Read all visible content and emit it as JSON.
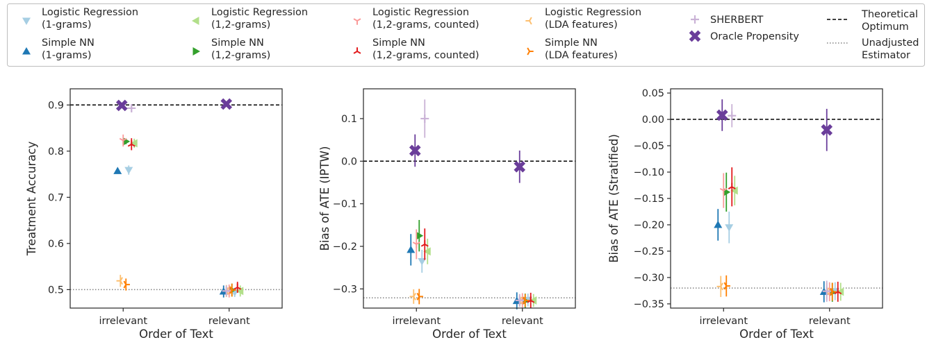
{
  "legend": {
    "entries": [
      {
        "label": "Logistic Regression\n(1-grams)",
        "color": "#a6cee3",
        "marker": "tri-down"
      },
      {
        "label": "Simple NN\n(1-grams)",
        "color": "#1f78b4",
        "marker": "tri-up"
      },
      {
        "label": "Logistic Regression\n(1,2-grams)",
        "color": "#b2df8a",
        "marker": "tri-left"
      },
      {
        "label": "Simple NN\n(1,2-grams)",
        "color": "#33a02c",
        "marker": "tri-right"
      },
      {
        "label": "Logistic Regression\n(1,2-grams, counted)",
        "color": "#fb9a99",
        "marker": "tri1-down"
      },
      {
        "label": "Simple NN\n(1,2-grams, counted)",
        "color": "#e31a1c",
        "marker": "tri1-up"
      },
      {
        "label": "Logistic Regression\n(LDA features)",
        "color": "#fdbf6f",
        "marker": "tri1-left"
      },
      {
        "label": "Simple NN\n(LDA features)",
        "color": "#ff7f00",
        "marker": "tri1-right"
      },
      {
        "label": "SHERBERT",
        "color": "#cab2d6",
        "marker": "plus"
      },
      {
        "label": "Oracle Propensity",
        "color": "#6a3d9a",
        "marker": "x-filled"
      },
      {
        "label": "Theoretical\nOptimum",
        "color": "#000000",
        "marker": "dashed-line"
      },
      {
        "label": "Unadjusted\nEstimator",
        "color": "#808080",
        "marker": "dotted-line"
      }
    ]
  },
  "chart_data": [
    {
      "type": "scatter",
      "xlabel": "Order of Text",
      "ylabel": "Treatment Accuracy",
      "categories": [
        "irrelevant",
        "relevant"
      ],
      "ylim": [
        0.46,
        0.935
      ],
      "yticks": [
        0.5,
        0.6,
        0.7,
        0.8,
        0.9
      ],
      "ytick_labels": [
        "0.5",
        "0.6",
        "0.7",
        "0.8",
        "0.9"
      ],
      "reference_lines": {
        "theoretical_optimum": 0.9,
        "unadjusted_estimator": 0.5
      },
      "series": [
        {
          "name": "Logistic Regression (1-grams)",
          "points": [
            {
              "x": "irrelevant",
              "y": 0.759,
              "err": 0.01
            },
            {
              "x": "relevant",
              "y": 0.494,
              "err": 0.01
            }
          ]
        },
        {
          "name": "Simple NN (1-grams)",
          "points": [
            {
              "x": "irrelevant",
              "y": 0.757,
              "err": 0.006
            },
            {
              "x": "relevant",
              "y": 0.496,
              "err": 0.013
            }
          ]
        },
        {
          "name": "Logistic Regression (1,2-grams)",
          "points": [
            {
              "x": "irrelevant",
              "y": 0.817,
              "err": 0.01
            },
            {
              "x": "relevant",
              "y": 0.497,
              "err": 0.012
            }
          ]
        },
        {
          "name": "Simple NN (1,2-grams)",
          "points": [
            {
              "x": "irrelevant",
              "y": 0.821,
              "err": 0.006
            },
            {
              "x": "relevant",
              "y": 0.499,
              "err": 0.014
            }
          ]
        },
        {
          "name": "Logistic Regression (1,2-grams, counted)",
          "points": [
            {
              "x": "irrelevant",
              "y": 0.823,
              "err": 0.013
            },
            {
              "x": "relevant",
              "y": 0.497,
              "err": 0.014
            }
          ]
        },
        {
          "name": "Simple NN (1,2-grams, counted)",
          "points": [
            {
              "x": "irrelevant",
              "y": 0.815,
              "err": 0.013
            },
            {
              "x": "relevant",
              "y": 0.505,
              "err": 0.012
            }
          ]
        },
        {
          "name": "Logistic Regression (LDA features)",
          "points": [
            {
              "x": "irrelevant",
              "y": 0.519,
              "err": 0.013
            },
            {
              "x": "relevant",
              "y": 0.497,
              "err": 0.013
            }
          ]
        },
        {
          "name": "Simple NN (LDA features)",
          "points": [
            {
              "x": "irrelevant",
              "y": 0.511,
              "err": 0.013
            },
            {
              "x": "relevant",
              "y": 0.499,
              "err": 0.014
            }
          ]
        },
        {
          "name": "SHERBERT",
          "points": [
            {
              "x": "irrelevant",
              "y": 0.893,
              "err": 0.007
            },
            {
              "x": "relevant",
              "y": 0.497,
              "err": 0.012
            }
          ]
        },
        {
          "name": "Oracle Propensity",
          "points": [
            {
              "x": "irrelevant",
              "y": 0.899,
              "err": 0.003
            },
            {
              "x": "relevant",
              "y": 0.902,
              "err": 0.004
            }
          ]
        }
      ]
    },
    {
      "type": "scatter",
      "xlabel": "Order of Text",
      "ylabel": "Bias of ATE (IPTW)",
      "categories": [
        "irrelevant",
        "relevant"
      ],
      "ylim": [
        -0.345,
        0.17
      ],
      "yticks": [
        -0.3,
        -0.2,
        -0.1,
        0.0,
        0.1
      ],
      "ytick_labels": [
        "−0.3",
        "−0.2",
        "−0.1",
        "0.0",
        "0.1"
      ],
      "reference_lines": {
        "theoretical_optimum": 0.0,
        "unadjusted_estimator": -0.321
      },
      "series": [
        {
          "name": "Logistic Regression (1-grams)",
          "points": [
            {
              "x": "irrelevant",
              "y": -0.235,
              "err": 0.027
            },
            {
              "x": "relevant",
              "y": -0.326,
              "err": 0.015
            }
          ]
        },
        {
          "name": "Simple NN (1-grams)",
          "points": [
            {
              "x": "irrelevant",
              "y": -0.208,
              "err": 0.037
            },
            {
              "x": "relevant",
              "y": -0.328,
              "err": 0.02
            }
          ]
        },
        {
          "name": "Logistic Regression (1,2-grams)",
          "points": [
            {
              "x": "irrelevant",
              "y": -0.212,
              "err": 0.03
            },
            {
              "x": "relevant",
              "y": -0.327,
              "err": 0.015
            }
          ]
        },
        {
          "name": "Simple NN (1,2-grams)",
          "points": [
            {
              "x": "irrelevant",
              "y": -0.175,
              "err": 0.037
            },
            {
              "x": "relevant",
              "y": -0.328,
              "err": 0.017
            }
          ]
        },
        {
          "name": "Logistic Regression (1,2-grams, counted)",
          "points": [
            {
              "x": "irrelevant",
              "y": -0.195,
              "err": 0.035
            },
            {
              "x": "relevant",
              "y": -0.327,
              "err": 0.017
            }
          ]
        },
        {
          "name": "Simple NN (1,2-grams, counted)",
          "points": [
            {
              "x": "irrelevant",
              "y": -0.195,
              "err": 0.037
            },
            {
              "x": "relevant",
              "y": -0.327,
              "err": 0.018
            }
          ]
        },
        {
          "name": "Logistic Regression (LDA features)",
          "points": [
            {
              "x": "irrelevant",
              "y": -0.318,
              "err": 0.017
            },
            {
              "x": "relevant",
              "y": -0.327,
              "err": 0.014
            }
          ]
        },
        {
          "name": "Simple NN (LDA features)",
          "points": [
            {
              "x": "irrelevant",
              "y": -0.318,
              "err": 0.018
            },
            {
              "x": "relevant",
              "y": -0.327,
              "err": 0.015
            }
          ]
        },
        {
          "name": "SHERBERT",
          "points": [
            {
              "x": "irrelevant",
              "y": 0.1,
              "err": 0.045
            },
            {
              "x": "relevant",
              "y": -0.327,
              "err": 0.015
            }
          ]
        },
        {
          "name": "Oracle Propensity",
          "points": [
            {
              "x": "irrelevant",
              "y": 0.025,
              "err": 0.038
            },
            {
              "x": "relevant",
              "y": -0.013,
              "err": 0.038
            }
          ]
        }
      ]
    },
    {
      "type": "scatter",
      "xlabel": "Order of Text",
      "ylabel": "Bias of ATE (Stratified)",
      "categories": [
        "irrelevant",
        "relevant"
      ],
      "ylim": [
        -0.358,
        0.058
      ],
      "yticks": [
        -0.35,
        -0.3,
        -0.25,
        -0.2,
        -0.15,
        -0.1,
        -0.05,
        0.0,
        0.05
      ],
      "ytick_labels": [
        "−0.35",
        "−0.30",
        "−0.25",
        "−0.20",
        "−0.15",
        "−0.10",
        "−0.05",
        "0.00",
        "0.05"
      ],
      "reference_lines": {
        "theoretical_optimum": 0.0,
        "unadjusted_estimator": -0.32
      },
      "series": [
        {
          "name": "Logistic Regression (1-grams)",
          "points": [
            {
              "x": "irrelevant",
              "y": -0.205,
              "err": 0.03
            },
            {
              "x": "relevant",
              "y": -0.326,
              "err": 0.017
            }
          ]
        },
        {
          "name": "Simple NN (1-grams)",
          "points": [
            {
              "x": "irrelevant",
              "y": -0.2,
              "err": 0.03
            },
            {
              "x": "relevant",
              "y": -0.327,
              "err": 0.02
            }
          ]
        },
        {
          "name": "Logistic Regression (1,2-grams)",
          "points": [
            {
              "x": "irrelevant",
              "y": -0.135,
              "err": 0.028
            },
            {
              "x": "relevant",
              "y": -0.327,
              "err": 0.017
            }
          ]
        },
        {
          "name": "Simple NN (1,2-grams)",
          "points": [
            {
              "x": "irrelevant",
              "y": -0.138,
              "err": 0.037
            },
            {
              "x": "relevant",
              "y": -0.328,
              "err": 0.018
            }
          ]
        },
        {
          "name": "Logistic Regression (1,2-grams, counted)",
          "points": [
            {
              "x": "irrelevant",
              "y": -0.135,
              "err": 0.033
            },
            {
              "x": "relevant",
              "y": -0.327,
              "err": 0.018
            }
          ]
        },
        {
          "name": "Simple NN (1,2-grams, counted)",
          "points": [
            {
              "x": "irrelevant",
              "y": -0.128,
              "err": 0.037
            },
            {
              "x": "relevant",
              "y": -0.327,
              "err": 0.019
            }
          ]
        },
        {
          "name": "Logistic Regression (LDA features)",
          "points": [
            {
              "x": "irrelevant",
              "y": -0.317,
              "err": 0.02
            },
            {
              "x": "relevant",
              "y": -0.326,
              "err": 0.016
            }
          ]
        },
        {
          "name": "Simple NN (LDA features)",
          "points": [
            {
              "x": "irrelevant",
              "y": -0.316,
              "err": 0.02
            },
            {
              "x": "relevant",
              "y": -0.327,
              "err": 0.017
            }
          ]
        },
        {
          "name": "SHERBERT",
          "points": [
            {
              "x": "irrelevant",
              "y": 0.007,
              "err": 0.022
            },
            {
              "x": "relevant",
              "y": -0.326,
              "err": 0.02
            }
          ]
        },
        {
          "name": "Oracle Propensity",
          "points": [
            {
              "x": "irrelevant",
              "y": 0.008,
              "err": 0.03
            },
            {
              "x": "relevant",
              "y": -0.02,
              "err": 0.04
            }
          ]
        }
      ]
    }
  ]
}
